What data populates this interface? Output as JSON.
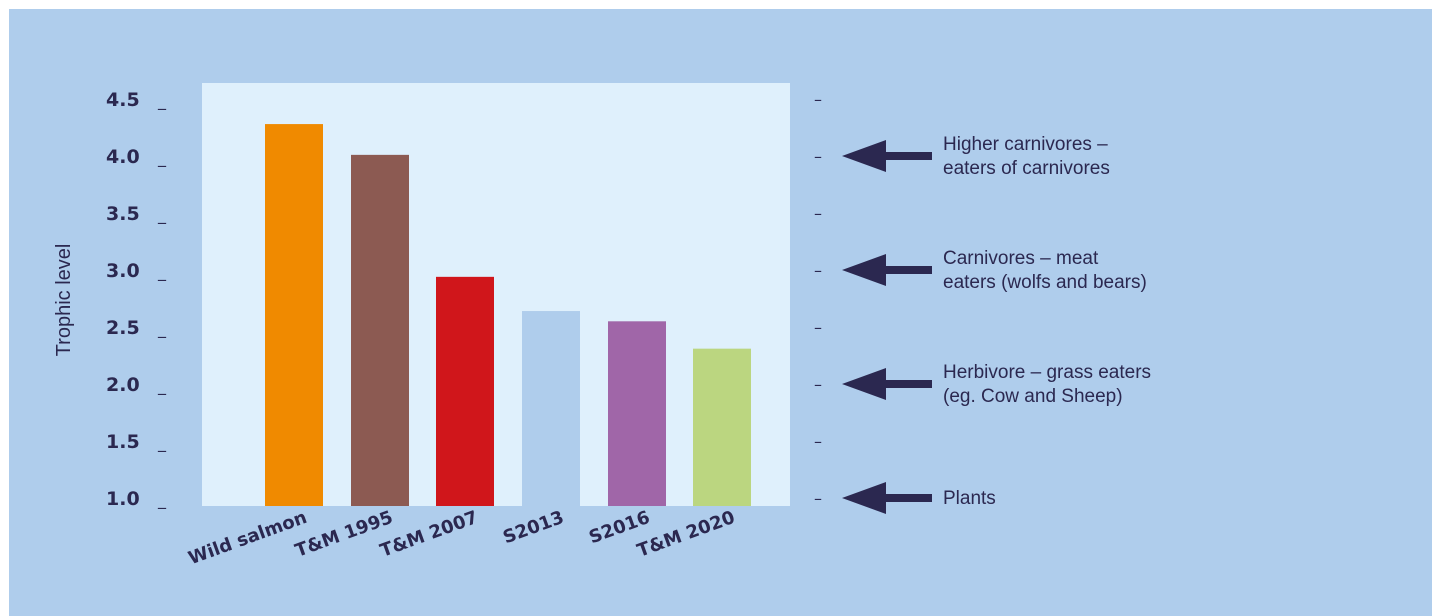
{
  "chart_data": {
    "type": "bar",
    "title": "",
    "xlabel": "",
    "ylabel": "Trophic level",
    "ylim": [
      1.0,
      4.5
    ],
    "yticks": [
      "4.5",
      "4.0",
      "3.5",
      "3.0",
      "2.5",
      "2.0",
      "1.5",
      "1.0"
    ],
    "categories": [
      "Wild salmon",
      "T&M 1995",
      "T&M 2007",
      "S2013",
      "S2016",
      "T&M 2020"
    ],
    "values": [
      4.28,
      4.01,
      2.94,
      2.64,
      2.55,
      2.31
    ],
    "colors": [
      "#f08a00",
      "#8c5a52",
      "#d0161b",
      "#afcdec",
      "#a066a8",
      "#bbd680"
    ],
    "plot_background": "#dff0fc",
    "background": "#afcdec",
    "annotations": [
      {
        "level": 4.0,
        "lines": [
          "Higher carnivores –",
          "eaters of carnivores"
        ]
      },
      {
        "level": 3.0,
        "lines": [
          "Carnivores – meat",
          "eaters (wolfs and bears)"
        ]
      },
      {
        "level": 2.0,
        "lines": [
          "Herbivore – grass eaters",
          "(eg. Cow and Sheep)"
        ]
      },
      {
        "level": 1.0,
        "lines": [
          "Plants"
        ]
      }
    ],
    "tick_mark": "_",
    "right_tick_mark": "–",
    "arrow_icon": "left-arrow-icon"
  }
}
